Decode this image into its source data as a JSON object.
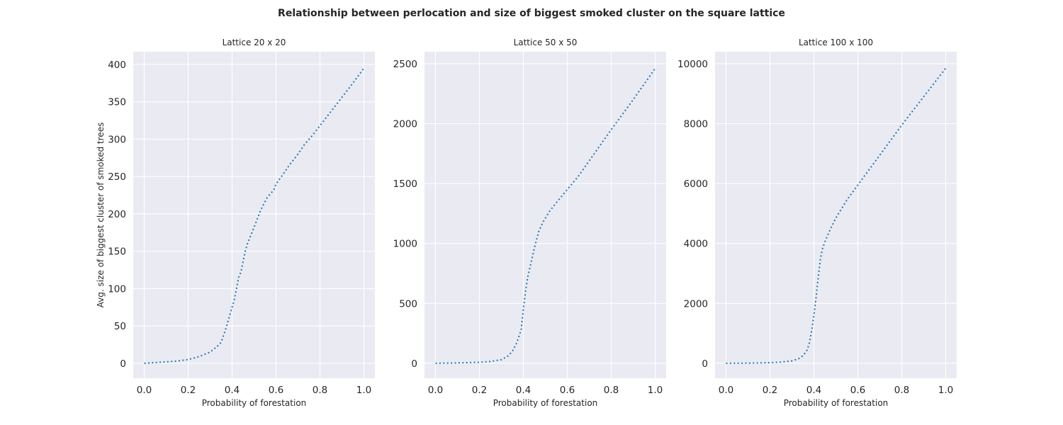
{
  "figure": {
    "title": "Relationship between perlocation and size of biggest smoked cluster on the square lattice"
  },
  "colors": {
    "plot_background": "#eaeaf2",
    "grid": "#ffffff",
    "series": "#1f77b4"
  },
  "chart_data": [
    {
      "type": "line",
      "title": "Lattice 20 x 20",
      "xlabel": "Probability of forestation",
      "ylabel": "Avg. size of biggest cluster of smoked trees",
      "xlim": [
        -0.05,
        1.05
      ],
      "ylim": [
        -20,
        417
      ],
      "xticks": [
        0.0,
        0.2,
        0.4,
        0.6,
        0.8,
        1.0
      ],
      "xtick_labels": [
        "0.0",
        "0.2",
        "0.4",
        "0.6",
        "0.8",
        "1.0"
      ],
      "yticks": [
        0,
        50,
        100,
        150,
        200,
        250,
        300,
        350,
        400
      ],
      "ytick_labels": [
        "0",
        "50",
        "100",
        "150",
        "200",
        "250",
        "300",
        "350",
        "400"
      ],
      "grid": true,
      "line_style": "dotted",
      "x": [
        0.0,
        0.05,
        0.1,
        0.15,
        0.2,
        0.25,
        0.3,
        0.33,
        0.35,
        0.37,
        0.39,
        0.41,
        0.43,
        0.44,
        0.46,
        0.47,
        0.5,
        0.53,
        0.56,
        0.59,
        0.6,
        0.63,
        0.66,
        0.7,
        0.73,
        0.76,
        0.8,
        0.85,
        0.9,
        0.95,
        1.0
      ],
      "y": [
        0,
        1,
        2,
        3,
        5,
        9,
        15,
        22,
        28,
        45,
        65,
        85,
        115,
        122,
        150,
        160,
        182,
        205,
        222,
        232,
        240,
        252,
        265,
        280,
        293,
        303,
        318,
        337,
        356,
        375,
        395
      ]
    },
    {
      "type": "line",
      "title": "Lattice 50 x 50",
      "xlabel": "Probability of forestation",
      "ylabel": "",
      "xlim": [
        -0.05,
        1.05
      ],
      "ylim": [
        -125,
        2600
      ],
      "xticks": [
        0.0,
        0.2,
        0.4,
        0.6,
        0.8,
        1.0
      ],
      "xtick_labels": [
        "0.0",
        "0.2",
        "0.4",
        "0.6",
        "0.8",
        "1.0"
      ],
      "yticks": [
        0,
        500,
        1000,
        1500,
        2000,
        2500
      ],
      "ytick_labels": [
        "0",
        "500",
        "1000",
        "1500",
        "2000",
        "2500"
      ],
      "grid": true,
      "line_style": "dotted",
      "x": [
        0.0,
        0.1,
        0.2,
        0.25,
        0.3,
        0.33,
        0.35,
        0.37,
        0.39,
        0.4,
        0.41,
        0.42,
        0.43,
        0.45,
        0.47,
        0.49,
        0.52,
        0.55,
        0.6,
        0.65,
        0.7,
        0.8,
        0.9,
        1.0
      ],
      "y": [
        0,
        3,
        8,
        15,
        30,
        60,
        100,
        170,
        280,
        450,
        600,
        720,
        800,
        960,
        1100,
        1180,
        1270,
        1340,
        1450,
        1560,
        1690,
        1950,
        2200,
        2460
      ]
    },
    {
      "type": "line",
      "title": "Lattice 100 x 100",
      "xlabel": "Probability of forestation",
      "ylabel": "",
      "xlim": [
        -0.05,
        1.05
      ],
      "ylim": [
        -500,
        10400
      ],
      "xticks": [
        0.0,
        0.2,
        0.4,
        0.6,
        0.8,
        1.0
      ],
      "xtick_labels": [
        "0.0",
        "0.2",
        "0.4",
        "0.6",
        "0.8",
        "1.0"
      ],
      "yticks": [
        0,
        2000,
        4000,
        6000,
        8000,
        10000
      ],
      "ytick_labels": [
        "0",
        "2000",
        "4000",
        "6000",
        "8000",
        "10000"
      ],
      "grid": true,
      "line_style": "dotted",
      "x": [
        0.0,
        0.1,
        0.2,
        0.25,
        0.3,
        0.33,
        0.35,
        0.37,
        0.38,
        0.39,
        0.4,
        0.41,
        0.42,
        0.43,
        0.44,
        0.45,
        0.47,
        0.5,
        0.55,
        0.6,
        0.7,
        0.8,
        0.9,
        1.0
      ],
      "y": [
        0,
        5,
        20,
        40,
        80,
        150,
        250,
        450,
        700,
        1100,
        1600,
        2200,
        2900,
        3500,
        3850,
        4050,
        4400,
        4850,
        5450,
        5950,
        6950,
        7950,
        8900,
        9850
      ]
    }
  ]
}
